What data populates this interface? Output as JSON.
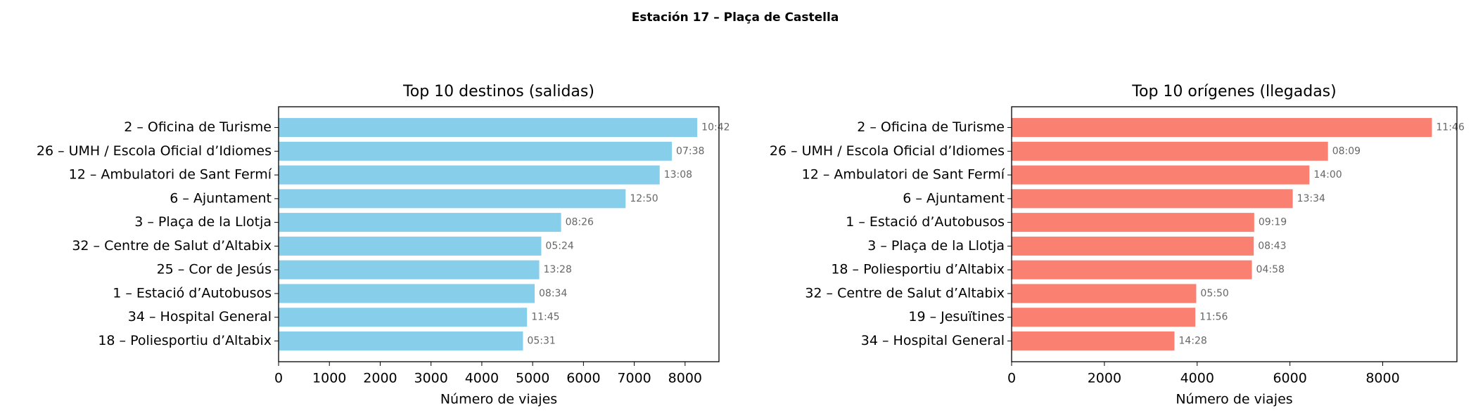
{
  "title": "Estación 17 – Plaça de Castella",
  "chart_data": [
    {
      "type": "barh",
      "title": "Top 10 destinos (salidas)",
      "xlabel": "Número de viajes",
      "color": "#87ceeb",
      "categories": [
        "2 – Oficina de Turisme",
        "26 – UMH / Escola Oficial d’Idiomes",
        "12 – Ambulatori de Sant Fermí",
        "6 – Ajuntament",
        "3 – Plaça de la Llotja",
        "32 – Centre de Salut d’Altabix",
        "25 – Cor de Jesús",
        "1 – Estació d’Autobusos",
        "34 – Hospital General",
        "18 – Poliesportiu d’Altabix"
      ],
      "values": [
        8240,
        7740,
        7500,
        6830,
        5560,
        5170,
        5130,
        5040,
        4890,
        4810
      ],
      "annotations": [
        "10:42",
        "07:38",
        "13:08",
        "12:50",
        "08:26",
        "05:24",
        "13:28",
        "08:34",
        "11:45",
        "05:31"
      ],
      "xlim": [
        0,
        8667
      ],
      "xticks": [
        0,
        1000,
        2000,
        3000,
        4000,
        5000,
        6000,
        7000,
        8000
      ]
    },
    {
      "type": "barh",
      "title": "Top 10 orígenes (llegadas)",
      "xlabel": "Número de viajes",
      "color": "#fa8072",
      "categories": [
        "2 – Oficina de Turisme",
        "26 – UMH / Escola Oficial d’Idiomes",
        "12 – Ambulatori de Sant Fermí",
        "6 – Ajuntament",
        "1 – Estació d’Autobusos",
        "3 – Plaça de la Llotja",
        "18 – Poliesportiu d’Altabix",
        "32 – Centre de Salut d’Altabix",
        "19 – Jesuïtines",
        "34 – Hospital General"
      ],
      "values": [
        9060,
        6820,
        6420,
        6060,
        5230,
        5220,
        5180,
        3980,
        3960,
        3510
      ],
      "annotations": [
        "11:46",
        "08:09",
        "14:00",
        "13:34",
        "09:19",
        "08:43",
        "04:58",
        "05:50",
        "11:56",
        "14:28"
      ],
      "xlim": [
        0,
        9600
      ],
      "xticks": [
        0,
        2000,
        4000,
        6000,
        8000
      ]
    }
  ]
}
